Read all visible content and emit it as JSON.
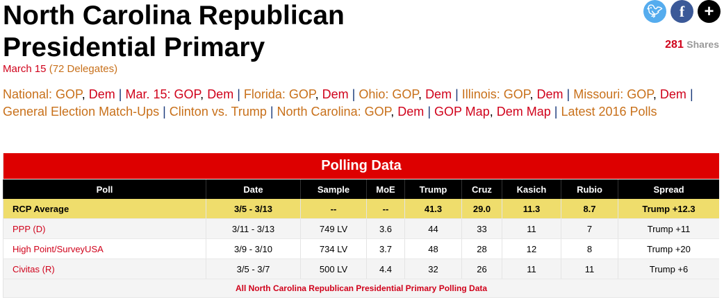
{
  "title": "North Carolina Republican Presidential Primary",
  "subtitle": {
    "date": "March 15",
    "delegates": "(72 Delegates)"
  },
  "social": {
    "twitter": "twitter-icon",
    "facebook": "facebook-icon",
    "more": "plus-icon",
    "share_count": "281",
    "share_label": "Shares"
  },
  "nav": [
    [
      {
        "t": "National: GOP",
        "c": "o"
      },
      {
        "t": ", "
      },
      {
        "t": "Dem",
        "c": "r"
      },
      {
        "t": " | ",
        "c": "sep"
      },
      {
        "t": "Mar. 15: GOP",
        "c": "r"
      },
      {
        "t": ", "
      },
      {
        "t": "Dem",
        "c": "r"
      },
      {
        "t": " | ",
        "c": "sep"
      },
      {
        "t": "Florida: GOP",
        "c": "o"
      },
      {
        "t": ", "
      },
      {
        "t": "Dem",
        "c": "r"
      },
      {
        "t": " | ",
        "c": "sep"
      },
      {
        "t": "Ohio: GOP",
        "c": "o"
      },
      {
        "t": ", "
      },
      {
        "t": "Dem",
        "c": "r"
      },
      {
        "t": " | ",
        "c": "sep"
      },
      {
        "t": "Illinois: GOP",
        "c": "o"
      },
      {
        "t": ", "
      },
      {
        "t": "Dem",
        "c": "r"
      },
      {
        "t": " | ",
        "c": "sep"
      },
      {
        "t": "Missouri: GOP",
        "c": "o"
      },
      {
        "t": ", "
      },
      {
        "t": "Dem",
        "c": "r"
      },
      {
        "t": " |",
        "c": "sep"
      }
    ],
    [
      {
        "t": "General Election Match-Ups",
        "c": "o"
      },
      {
        "t": " | ",
        "c": "sep"
      },
      {
        "t": "Clinton vs. Trump",
        "c": "o"
      },
      {
        "t": " | ",
        "c": "sep"
      },
      {
        "t": "North Carolina: GOP",
        "c": "o"
      },
      {
        "t": ", "
      },
      {
        "t": "Dem",
        "c": "r"
      },
      {
        "t": " | ",
        "c": "sep"
      },
      {
        "t": "GOP Map",
        "c": "r"
      },
      {
        "t": ", "
      },
      {
        "t": "Dem Map",
        "c": "r"
      },
      {
        "t": " | ",
        "c": "sep"
      },
      {
        "t": "Latest 2016 Polls",
        "c": "o"
      }
    ]
  ],
  "table": {
    "title": "Polling Data",
    "columns": [
      "Poll",
      "Date",
      "Sample",
      "MoE",
      "Trump",
      "Cruz",
      "Kasich",
      "Rubio",
      "Spread"
    ],
    "rows": [
      [
        "RCP Average",
        "3/5 - 3/13",
        "--",
        "--",
        "41.3",
        "29.0",
        "11.3",
        "8.7",
        "Trump +12.3"
      ],
      [
        "PPP (D)",
        "3/11 - 3/13",
        "749 LV",
        "3.6",
        "44",
        "33",
        "11",
        "7",
        "Trump +11"
      ],
      [
        "High Point/SurveyUSA",
        "3/9 - 3/10",
        "734 LV",
        "3.7",
        "48",
        "28",
        "12",
        "8",
        "Trump +20"
      ],
      [
        "Civitas (R)",
        "3/5 - 3/7",
        "500 LV",
        "4.4",
        "32",
        "26",
        "11",
        "11",
        "Trump +6"
      ]
    ],
    "footer_link": "All North Carolina Republican Presidential Primary Polling Data"
  },
  "colors": {
    "accent_red": "#dd0000",
    "link_orange": "#c8701a",
    "link_red": "#d0021b",
    "rcp_row": "#efdd6c"
  }
}
